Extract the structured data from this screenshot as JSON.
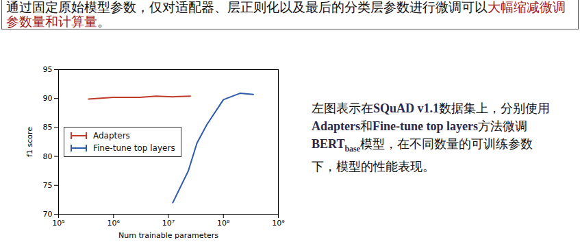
{
  "chart_data": {
    "type": "line",
    "x_label": "Num trainable parameters",
    "y_label": "f1 score",
    "log": "x",
    "grid": false,
    "legend": "center left",
    "xlim": [
      100000,
      1000000000
    ],
    "xticks": [
      {
        "value": 100000,
        "label": "10⁵"
      },
      {
        "value": 1000000,
        "label": "10⁶"
      },
      {
        "value": 10000000,
        "label": "10⁷"
      },
      {
        "value": 100000000,
        "label": "10⁸"
      },
      {
        "value": 1000000000,
        "label": "10⁹"
      }
    ],
    "ylim": [
      70,
      95
    ],
    "yticks": [
      70,
      75,
      80,
      85,
      90,
      95
    ],
    "series": [
      {
        "name": "Adapters",
        "color": "#c0392b",
        "x": [
          350000,
          1000000,
          3000000,
          6000000,
          12000000,
          25000000
        ],
        "values": [
          89.9,
          90.2,
          90.2,
          90.4,
          90.3,
          90.4
        ]
      },
      {
        "name": "Fine-tune top layers",
        "color": "#2f5aa8",
        "x": [
          12000000,
          23000000,
          33000000,
          50000000,
          100000000,
          200000000,
          350000000
        ],
        "values": [
          72.0,
          77.5,
          82.3,
          85.5,
          89.8,
          90.9,
          90.7
        ]
      }
    ]
  },
  "slide": {
    "banner": [
      {
        "text": "通过固定原始模型参数，仅对适配器、层正则化以及最后的分类层参数进行微调可以"
      },
      {
        "text": "大幅缩减微调参数量和计算量",
        "color": "#a01818"
      },
      {
        "text": "。"
      }
    ],
    "description": [
      {
        "text": "左图表示在"
      },
      {
        "text": "SQuAD v1.1",
        "bold": true
      },
      {
        "text": "数据集上，分别使用"
      },
      {
        "text": "Adapters",
        "bold": true
      },
      {
        "text": "和"
      },
      {
        "text": "Fine-tune top layers",
        "bold": true
      },
      {
        "text": "方法微调"
      },
      {
        "text": "BERT",
        "bold": true
      },
      {
        "text": "base",
        "bold": true,
        "subscript": true
      },
      {
        "text": "模型，在不同数量的可训练参数下，模型的性能表现。"
      }
    ]
  }
}
